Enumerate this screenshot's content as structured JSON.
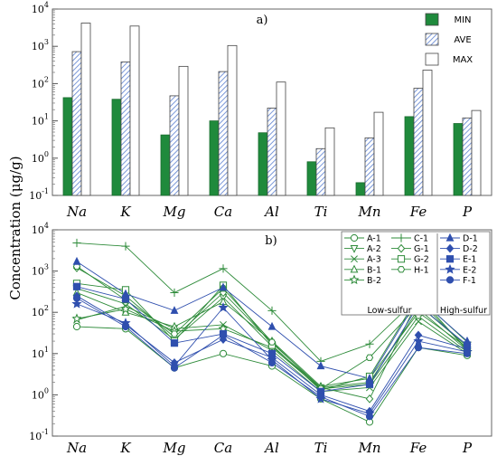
{
  "chart_data": [
    {
      "panel_label": "a)",
      "type": "bar",
      "yscale": "log",
      "ylim": [
        0.1,
        10000
      ],
      "ylabel": "Concentration (μg/g)",
      "categories": [
        "Na",
        "K",
        "Mg",
        "Ca",
        "Al",
        "Ti",
        "Mn",
        "Fe",
        "P"
      ],
      "legend_position": "top-right",
      "series": [
        {
          "name": "MIN",
          "values": [
            42,
            38,
            4.2,
            10,
            4.8,
            0.8,
            0.22,
            13,
            8.5
          ],
          "color": "#1f8a3c",
          "pattern": "solid"
        },
        {
          "name": "AVE",
          "values": [
            720,
            380,
            47,
            210,
            22,
            1.8,
            3.5,
            75,
            12
          ],
          "color": "#6b8cd6",
          "pattern": "hatch"
        },
        {
          "name": "MAX",
          "values": [
            4200,
            3500,
            290,
            1050,
            110,
            6.5,
            17,
            230,
            19
          ],
          "color": "#ffffff",
          "pattern": "open"
        }
      ]
    },
    {
      "panel_label": "b)",
      "type": "line",
      "yscale": "log",
      "ylim": [
        0.1,
        10000
      ],
      "ylabel": "Concentration (μg/g)",
      "categories": [
        "Na",
        "K",
        "Mg",
        "Ca",
        "Al",
        "Ti",
        "Mn",
        "Fe",
        "P"
      ],
      "legend_position": "top-right",
      "group_labels": [
        "Low-sulfur",
        "High-sulfur"
      ],
      "series": [
        {
          "name": "A-1",
          "group": "low",
          "marker": "circle-open",
          "values": [
            45,
            40,
            4.5,
            10,
            5,
            0.8,
            0.22,
            14,
            9
          ]
        },
        {
          "name": "A-2",
          "group": "low",
          "marker": "triangle-down-open",
          "values": [
            380,
            160,
            22,
            230,
            15,
            1.5,
            2,
            120,
            12
          ]
        },
        {
          "name": "A-3",
          "group": "low",
          "marker": "x",
          "values": [
            65,
            140,
            40,
            50,
            12,
            1.2,
            1.5,
            60,
            10
          ]
        },
        {
          "name": "B-1",
          "group": "low",
          "marker": "triangle-open",
          "values": [
            300,
            100,
            45,
            180,
            20,
            1.6,
            2.5,
            100,
            14
          ]
        },
        {
          "name": "B-2",
          "group": "low",
          "marker": "star-open",
          "values": [
            70,
            120,
            35,
            40,
            14,
            1.4,
            1.8,
            80,
            11
          ]
        },
        {
          "name": "C-1",
          "group": "low",
          "marker": "plus",
          "values": [
            4800,
            4000,
            300,
            1150,
            110,
            6.5,
            17,
            230,
            19
          ]
        },
        {
          "name": "G-1",
          "group": "low",
          "marker": "diamond-open",
          "values": [
            1200,
            250,
            25,
            300,
            18,
            1.5,
            0.8,
            200,
            13
          ]
        },
        {
          "name": "G-2",
          "group": "low",
          "marker": "square-open",
          "values": [
            500,
            350,
            20,
            450,
            16,
            1.3,
            2.8,
            250,
            12
          ]
        },
        {
          "name": "H-1",
          "group": "low",
          "marker": "hexagon-open",
          "values": [
            1300,
            200,
            30,
            380,
            19,
            1.4,
            8,
            150,
            15
          ]
        },
        {
          "name": "D-1",
          "group": "high",
          "marker": "triangle-filled",
          "values": [
            1700,
            280,
            110,
            400,
            45,
            5,
            2.5,
            220,
            20
          ]
        },
        {
          "name": "D-2",
          "group": "high",
          "marker": "diamond-filled",
          "values": [
            250,
            50,
            6,
            22,
            8,
            1,
            0.4,
            28,
            13
          ]
        },
        {
          "name": "E-1",
          "group": "high",
          "marker": "square-filled",
          "values": [
            420,
            210,
            18,
            30,
            10,
            1.2,
            1.8,
            150,
            16
          ]
        },
        {
          "name": "E-2",
          "group": "high",
          "marker": "star-filled",
          "values": [
            160,
            55,
            5,
            130,
            7,
            0.8,
            0.35,
            20,
            11
          ]
        },
        {
          "name": "F-1",
          "group": "high",
          "marker": "circle-filled",
          "values": [
            220,
            45,
            4.5,
            28,
            6,
            0.9,
            0.3,
            14,
            10
          ]
        }
      ],
      "colors": {
        "low": "#2e8b3a",
        "high": "#2f4fae"
      }
    }
  ]
}
